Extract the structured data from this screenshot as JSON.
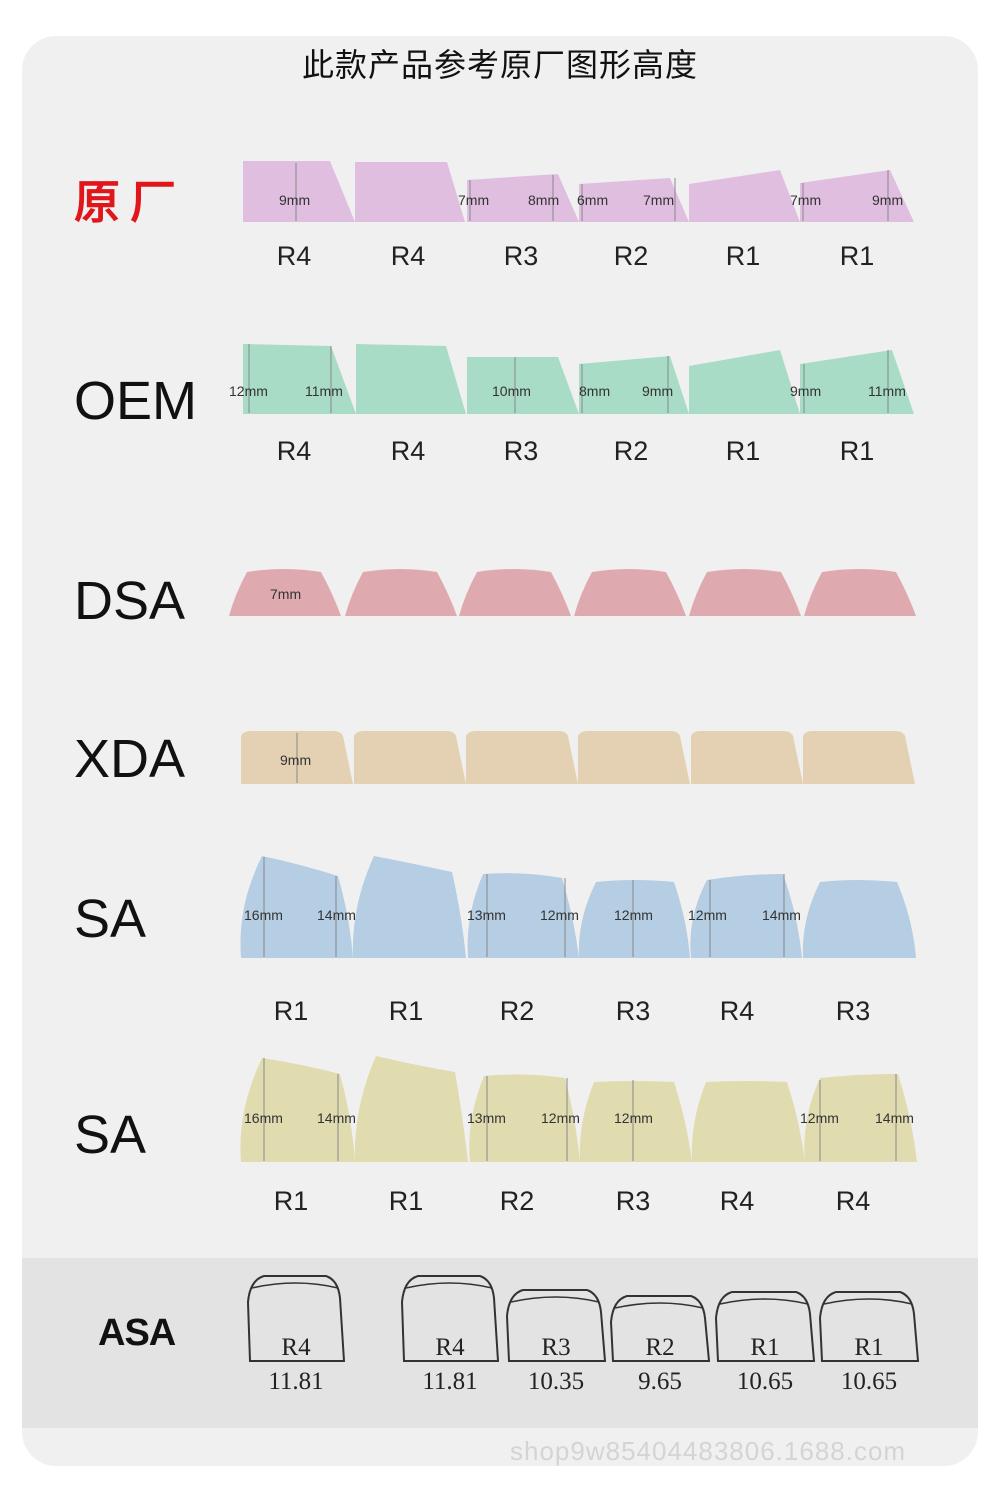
{
  "title": "此款产品参考原厂图形高度",
  "watermark": "shop9w85404483806.1688.com",
  "rows": [
    {
      "name": "原厂",
      "color": "#e0bee0",
      "labels": [
        "R4",
        "R4",
        "R3",
        "R2",
        "R1",
        "R1"
      ],
      "measures": [
        "9mm",
        "7mm",
        "8mm",
        "6mm",
        "7mm",
        "7mm",
        "9mm"
      ]
    },
    {
      "name": "OEM",
      "color": "#a9dcc6",
      "labels": [
        "R4",
        "R4",
        "R3",
        "R2",
        "R1",
        "R1"
      ],
      "measures": [
        "12mm",
        "11mm",
        "10mm",
        "8mm",
        "9mm",
        "9mm",
        "11mm"
      ]
    },
    {
      "name": "DSA",
      "color": "#deaaaf",
      "labels": [],
      "measures": [
        "7mm"
      ]
    },
    {
      "name": "XDA",
      "color": "#e4d1b3",
      "labels": [],
      "measures": [
        "9mm"
      ]
    },
    {
      "name": "SA",
      "color": "#b5cee3",
      "labels": [
        "R1",
        "R1",
        "R2",
        "R3",
        "R4",
        "R3"
      ],
      "measures": [
        "16mm",
        "14mm",
        "13mm",
        "12mm",
        "12mm",
        "12mm",
        "14mm"
      ]
    },
    {
      "name": "SA",
      "color": "#e1dcb0",
      "labels": [
        "R1",
        "R1",
        "R2",
        "R3",
        "R4",
        "R4"
      ],
      "measures": [
        "16mm",
        "14mm",
        "13mm",
        "12mm",
        "12mm",
        "12mm",
        "14mm"
      ]
    }
  ],
  "asa": {
    "name": "ASA",
    "keys": [
      {
        "row": "R4",
        "height": "11.81"
      },
      {
        "row": "R4",
        "height": "11.81"
      },
      {
        "row": "R3",
        "height": "10.35"
      },
      {
        "row": "R2",
        "height": "9.65"
      },
      {
        "row": "R1",
        "height": "10.65"
      },
      {
        "row": "R1",
        "height": "10.65"
      }
    ]
  }
}
